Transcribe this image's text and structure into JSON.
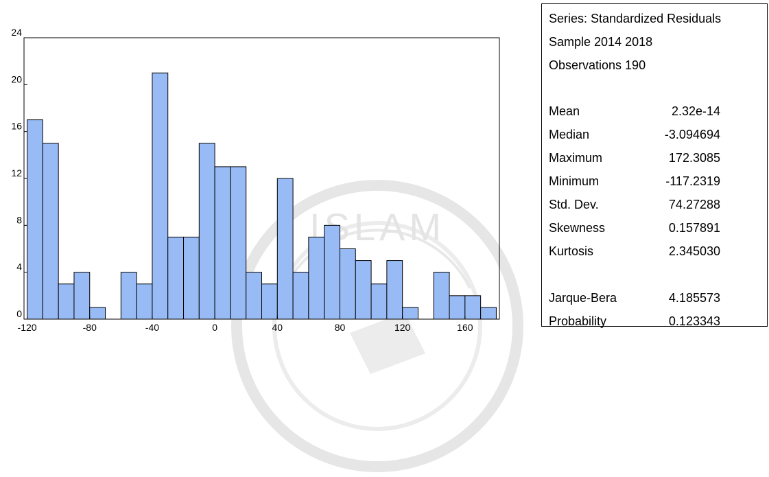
{
  "chart_data": {
    "type": "bar",
    "title": "",
    "xlabel": "",
    "ylabel": "",
    "bin_width": 10,
    "x_bins_start": [
      -120,
      -110,
      -100,
      -90,
      -80,
      -70,
      -60,
      -50,
      -40,
      -30,
      -20,
      -10,
      0,
      10,
      20,
      30,
      40,
      50,
      60,
      70,
      80,
      90,
      100,
      110,
      120,
      130,
      140,
      150,
      160,
      170
    ],
    "values": [
      17,
      15,
      3,
      4,
      1,
      0,
      4,
      3,
      21,
      7,
      7,
      15,
      13,
      13,
      4,
      3,
      12,
      4,
      7,
      8,
      6,
      5,
      3,
      5,
      1,
      0,
      4,
      2,
      2,
      1
    ],
    "xlim": [
      -122,
      182
    ],
    "ylim": [
      0,
      24
    ],
    "xticks": [
      -120,
      -80,
      -40,
      0,
      40,
      80,
      120,
      160
    ],
    "xtick_labels": [
      "-120",
      "-80",
      "-40",
      "0",
      "40",
      "80",
      "120",
      "160"
    ],
    "yticks": [
      0,
      4,
      8,
      12,
      16,
      20,
      24
    ],
    "ytick_labels": [
      "0",
      "4",
      "8",
      "12",
      "16",
      "20",
      "24"
    ],
    "grid": false,
    "bar_color": "#99bbf5",
    "bar_edge_color": "#000000"
  },
  "stats": {
    "series": "Series: Standardized Residuals",
    "sample": "Sample 2014 2018",
    "observations": "Observations 190",
    "rows": [
      {
        "label": "Mean",
        "value": "2.32e-14"
      },
      {
        "label": "Median",
        "value": "-3.094694"
      },
      {
        "label": "Maximum",
        "value": "172.3085"
      },
      {
        "label": "Minimum",
        "value": "-117.2319"
      },
      {
        "label": "Std. Dev.",
        "value": "74.27288"
      },
      {
        "label": "Skewness",
        "value": "0.157891"
      },
      {
        "label": "Kurtosis",
        "value": "2.345030"
      }
    ],
    "tests": [
      {
        "label": "Jarque-Bera",
        "value": "4.185573"
      },
      {
        "label": "Probability",
        "value": "0.123343"
      }
    ]
  },
  "watermark": {
    "text": "ISLAM",
    "color": "#e4e4e4"
  }
}
